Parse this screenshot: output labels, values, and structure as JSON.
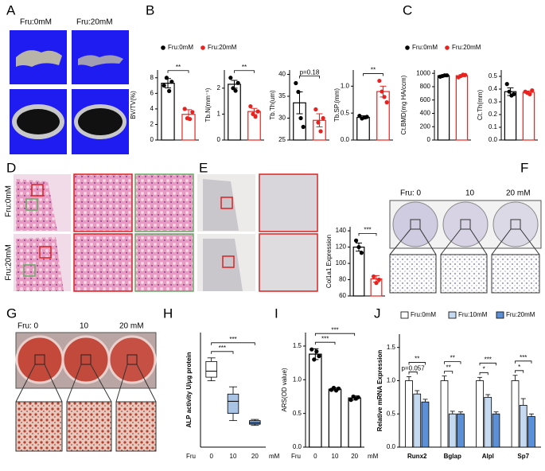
{
  "panels": [
    "A",
    "B",
    "C",
    "D",
    "E",
    "F",
    "G",
    "H",
    "I",
    "J"
  ],
  "images": {
    "A": {
      "labels": [
        "Fru:0mM",
        "Fru:20mM"
      ]
    },
    "D": {
      "labels": [
        "Fru:0mM",
        "Fru:20mM"
      ]
    },
    "F": {
      "labels": [
        "Fru: 0",
        "10",
        "20 mM"
      ]
    },
    "G": {
      "labels": [
        "Fru: 0",
        "10",
        "20 mM"
      ]
    }
  },
  "legends": [
    {
      "items": [
        {
          "name": "Fru:0mM",
          "color": "#000000"
        },
        {
          "name": "Fru:20mM",
          "color": "#e8231f"
        }
      ]
    },
    {
      "items": [
        {
          "name": "Fru:0mM",
          "color": "#000000"
        },
        {
          "name": "Fru:20mM",
          "color": "#e8231f"
        }
      ]
    }
  ],
  "chart_data": [
    {
      "type": "bar",
      "ylabel": "BV/TV(%)",
      "ylim": [
        0,
        9
      ],
      "yticks": [
        0,
        2,
        4,
        6,
        8
      ],
      "values": [
        7.3,
        3.3
      ],
      "errors": [
        0.6,
        0.6
      ],
      "colors": [
        "#000000",
        "#e8231f"
      ],
      "points": [
        [
          7.0,
          8.0,
          6.3,
          7.5
        ],
        [
          4.0,
          2.8,
          2.7,
          3.6
        ]
      ],
      "significance": [
        "**"
      ]
    },
    {
      "type": "bar",
      "ylabel": "Tb.N(mm⁻¹)",
      "ylim": [
        0,
        2.7
      ],
      "yticks": [
        0,
        1,
        2
      ],
      "values": [
        2.15,
        1.1
      ],
      "errors": [
        0.15,
        0.12
      ],
      "colors": [
        "#000000",
        "#e8231f"
      ],
      "points": [
        [
          2.4,
          2.0,
          1.9,
          2.2
        ],
        [
          1.3,
          1.0,
          0.9,
          1.1
        ]
      ],
      "significance": [
        "**"
      ]
    },
    {
      "type": "bar",
      "ylabel": "Tb.Th(um)",
      "ylim": [
        25,
        41
      ],
      "yticks": [
        25,
        30,
        35,
        40
      ],
      "values": [
        33.5,
        29.5
      ],
      "errors": [
        2.5,
        1.5
      ],
      "colors": [
        "#000000",
        "#e8231f"
      ],
      "points": [
        [
          38,
          36,
          30,
          28
        ],
        [
          32,
          29,
          27,
          30
        ]
      ],
      "significance": [
        "p=0.18"
      ]
    },
    {
      "type": "bar",
      "ylabel": "Tb.SP.(mm)",
      "ylim": [
        0,
        1.3
      ],
      "yticks": [
        {
          "value": 0,
          "label": "0.0"
        },
        0.5,
        {
          "value": 1,
          "label": "1.0"
        }
      ],
      "values": [
        0.42,
        0.9
      ],
      "errors": [
        0.03,
        0.1
      ],
      "colors": [
        "#000000",
        "#e8231f"
      ],
      "points": [
        [
          0.45,
          0.4,
          0.42,
          0.43
        ],
        [
          1.1,
          0.9,
          0.8,
          0.7
        ]
      ],
      "significance": [
        "**"
      ]
    },
    {
      "type": "bar",
      "ylabel": "Ct.BMD(mg HA/ccm)",
      "ylim": [
        0,
        1050
      ],
      "yticks": [
        0,
        200,
        400,
        600,
        800,
        1000
      ],
      "values": [
        965,
        965
      ],
      "errors": [
        10,
        15
      ],
      "colors": [
        "#000000",
        "#e8231f"
      ],
      "points": [
        [
          950,
          960,
          970,
          970
        ],
        [
          940,
          960,
          980,
          975
        ]
      ]
    },
    {
      "type": "bar",
      "ylabel": "Ct.Th(mm)",
      "ylim": [
        0,
        0.55
      ],
      "yticks": [
        {
          "value": 0,
          "label": "0.0"
        },
        0.1,
        0.2,
        0.3,
        0.4,
        0.5
      ],
      "values": [
        0.38,
        0.375
      ],
      "errors": [
        0.03,
        0.01
      ],
      "colors": [
        "#000000",
        "#e8231f"
      ],
      "points": [
        [
          0.44,
          0.38,
          0.35,
          0.36
        ],
        [
          0.38,
          0.37,
          0.36,
          0.39
        ]
      ]
    },
    {
      "type": "bar",
      "ylabel": "Col1a1 Expression",
      "ylim": [
        60,
        145
      ],
      "yticks": [
        60,
        80,
        100,
        120,
        140
      ],
      "values": [
        120,
        81
      ],
      "errors": [
        5,
        4
      ],
      "colors": [
        "#000000",
        "#e8231f"
      ],
      "points": [
        [
          128,
          120,
          113
        ],
        [
          84,
          76,
          80
        ]
      ],
      "significance": [
        "***"
      ]
    },
    {
      "type": "box",
      "ylabel": "ALP activity U/μg protein",
      "ylim": [
        30,
        125
      ],
      "x_prefix": "Fru",
      "x_suffix": "mM",
      "categories": [
        "0",
        "10",
        "20"
      ],
      "fills": [
        "#ffffff",
        "#a9c4e4",
        "#6f95c8"
      ],
      "boxes": [
        {
          "min": 85,
          "q1": 88,
          "median": 93,
          "q3": 101,
          "max": 104
        },
        {
          "min": 52,
          "q1": 58,
          "median": 68,
          "q3": 74,
          "max": 80
        },
        {
          "min": 48,
          "q1": 49,
          "median": 50,
          "q3": 52,
          "max": 53
        }
      ],
      "significance": [
        "***",
        "***"
      ]
    },
    {
      "type": "bar",
      "ylabel": "ARS(OD value)",
      "ylim": [
        0,
        1.7
      ],
      "yticks": [
        {
          "value": 0,
          "label": "0.0"
        },
        0.5,
        {
          "value": 1,
          "label": "1.0"
        },
        1.5
      ],
      "x_prefix": "Fru",
      "x_suffix": "mM",
      "categories": [
        "0",
        "10",
        "20"
      ],
      "values": [
        1.38,
        0.86,
        0.73
      ],
      "errors": [
        0.08,
        0.02,
        0.03
      ],
      "colors": [
        "#000000",
        "#000000",
        "#000000"
      ],
      "points": [
        [
          1.45,
          1.3,
          1.42,
          1.35
        ],
        [
          0.85,
          0.88,
          0.84,
          0.87
        ],
        [
          0.7,
          0.75,
          0.72,
          0.74
        ]
      ],
      "significance": [
        "***",
        "***"
      ]
    },
    {
      "type": "bar",
      "ylabel": "Relative mRNA Expression",
      "ylim": [
        0,
        1.7
      ],
      "yticks": [
        {
          "value": 0,
          "label": "0.0"
        },
        0.5,
        {
          "value": 1,
          "label": "1.0"
        },
        1.5
      ],
      "categories": [
        "Runx2",
        "Bglap",
        "Alpl",
        "Sp7"
      ],
      "series": [
        {
          "name": "Fru:0mM",
          "color": "#ffffff",
          "values": [
            1.0,
            1.0,
            1.0,
            1.0
          ],
          "errors": [
            0.06,
            0.07,
            0.05,
            0.08
          ]
        },
        {
          "name": "Fru:10mM",
          "color": "#c5d9f1",
          "values": [
            0.8,
            0.5,
            0.75,
            0.63
          ],
          "errors": [
            0.05,
            0.04,
            0.04,
            0.1
          ]
        },
        {
          "name": "Fru:20mM",
          "color": "#5b8fd6",
          "values": [
            0.68,
            0.5,
            0.5,
            0.46
          ],
          "errors": [
            0.04,
            0.03,
            0.03,
            0.04
          ]
        }
      ],
      "significance": [
        [
          "p=0.057",
          "**"
        ],
        [
          "**",
          "**"
        ],
        [
          "*",
          "***"
        ],
        [
          "*",
          "***"
        ]
      ]
    }
  ]
}
